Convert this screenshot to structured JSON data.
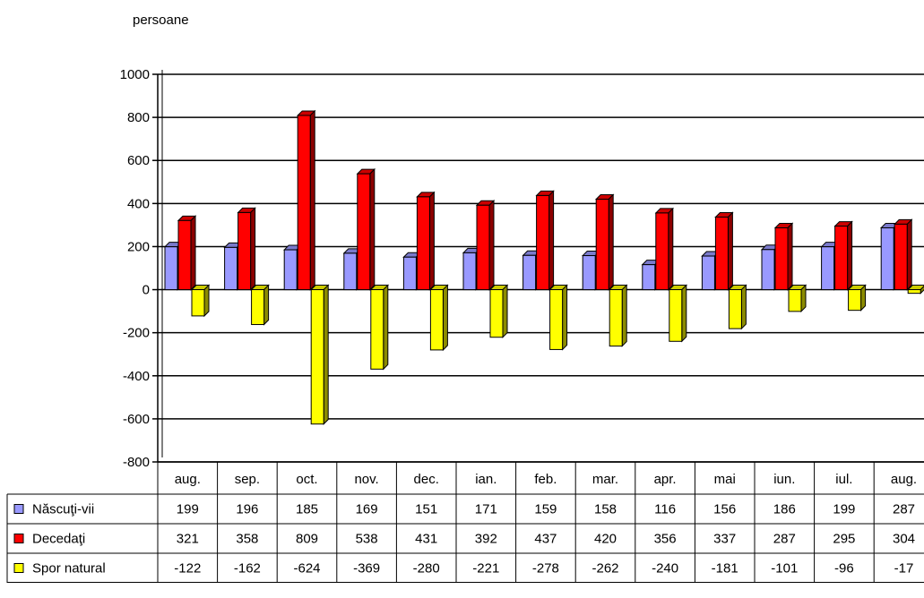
{
  "chart_data": {
    "type": "bar",
    "title": "",
    "ylabel": "persoane",
    "xlabel": "",
    "ylim": [
      -800,
      1000
    ],
    "yticks": [
      1000,
      800,
      600,
      400,
      200,
      0,
      -200,
      -400,
      -600,
      -800
    ],
    "grid": true,
    "legend": "data-table-left",
    "categories": [
      "aug.",
      "sep.",
      "oct.",
      "nov.",
      "dec.",
      "ian.",
      "feb.",
      "mar.",
      "apr.",
      "mai",
      "iun.",
      "iul.",
      "aug."
    ],
    "series": [
      {
        "name": "Născuţi-vii",
        "color": "#9999ff",
        "values": [
          199,
          196,
          185,
          169,
          151,
          171,
          159,
          158,
          116,
          156,
          186,
          199,
          287
        ]
      },
      {
        "name": "Decedaţi",
        "color": "#ff0000",
        "values": [
          321,
          358,
          809,
          538,
          431,
          392,
          437,
          420,
          356,
          337,
          287,
          295,
          304
        ]
      },
      {
        "name": "Spor natural",
        "color": "#ffff00",
        "values": [
          -122,
          -162,
          -624,
          -369,
          -280,
          -221,
          -278,
          -262,
          -240,
          -181,
          -101,
          -96,
          -17
        ]
      }
    ]
  }
}
